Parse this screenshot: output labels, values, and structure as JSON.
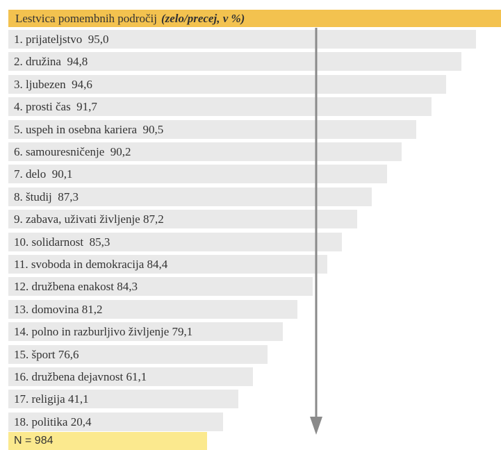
{
  "header": {
    "title": "Lestvica pomembnih področij",
    "note": "(zelo/precej, v %)"
  },
  "items": [
    "1. prijateljstvo  95,0",
    "2. družina  94,8",
    "3. ljubezen  94,6",
    "4. prosti čas  91,7",
    "5. uspeh in osebna kariera  90,5",
    "6. samouresničenje  90,2",
    "7. delo  90,1",
    "8. študij  87,3",
    "9. zabava, uživati življenje 87,2",
    "10. solidarnost  85,3",
    "11. svoboda in demokracija 84,4",
    "12. družbena enakost 84,3",
    "13. domovina 81,2",
    "14. polno in razburljivo življenje 79,1",
    "15. šport 76,6",
    "16. družbena dejavnost 61,1",
    "17. religija 41,1",
    "18. politika 20,4"
  ],
  "footer": "N = 984"
}
